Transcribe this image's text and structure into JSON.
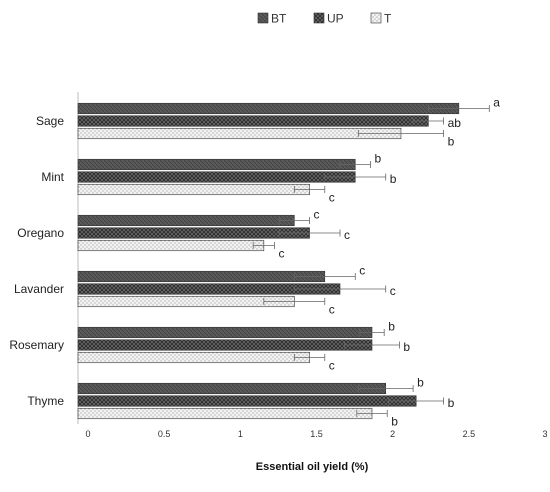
{
  "chart_data": {
    "type": "bar",
    "orientation": "horizontal",
    "title": "",
    "xlabel": "Essential oil yield (%)",
    "ylabel": "",
    "xlim": [
      0,
      3
    ],
    "x_ticks": [
      {
        "value": 0,
        "label": "0"
      },
      {
        "value": 0.5,
        "label": "0.5"
      },
      {
        "value": 1,
        "label": "1"
      },
      {
        "value": 1.5,
        "label": "1.5"
      },
      {
        "value": 2,
        "label": "2"
      },
      {
        "value": 2.5,
        "label": "2.5"
      },
      {
        "value": 3,
        "label": "3"
      }
    ],
    "categories": [
      "Sage",
      "Mint",
      "Oregano",
      "Lavander",
      "Rosemary",
      "Thyme"
    ],
    "legend_position": "top",
    "grid": false,
    "series": [
      {
        "name": "BT",
        "pattern": "solid-dark",
        "color": "#555555",
        "values": [
          2.5,
          1.82,
          1.42,
          1.62,
          1.93,
          2.02
        ],
        "errors": [
          0.2,
          0.1,
          0.1,
          0.2,
          0.08,
          0.18
        ],
        "labels": [
          "a",
          "b",
          "c",
          "c",
          "b",
          "b"
        ]
      },
      {
        "name": "UP",
        "pattern": "crosshatch",
        "color": "#3a3a3a",
        "values": [
          2.3,
          1.82,
          1.52,
          1.72,
          1.93,
          2.22
        ],
        "errors": [
          0.1,
          0.2,
          0.2,
          0.3,
          0.18,
          0.18
        ],
        "labels": [
          "ab",
          "b",
          "c",
          "c",
          "b",
          "b"
        ]
      },
      {
        "name": "T",
        "pattern": "dotted-light",
        "color": "#bbbbbb",
        "values": [
          2.12,
          1.52,
          1.22,
          1.42,
          1.52,
          1.93
        ],
        "errors": [
          0.28,
          0.1,
          0.07,
          0.2,
          0.1,
          0.1
        ],
        "labels": [
          "b",
          "c",
          "c",
          "c",
          "c",
          "b"
        ]
      }
    ]
  }
}
